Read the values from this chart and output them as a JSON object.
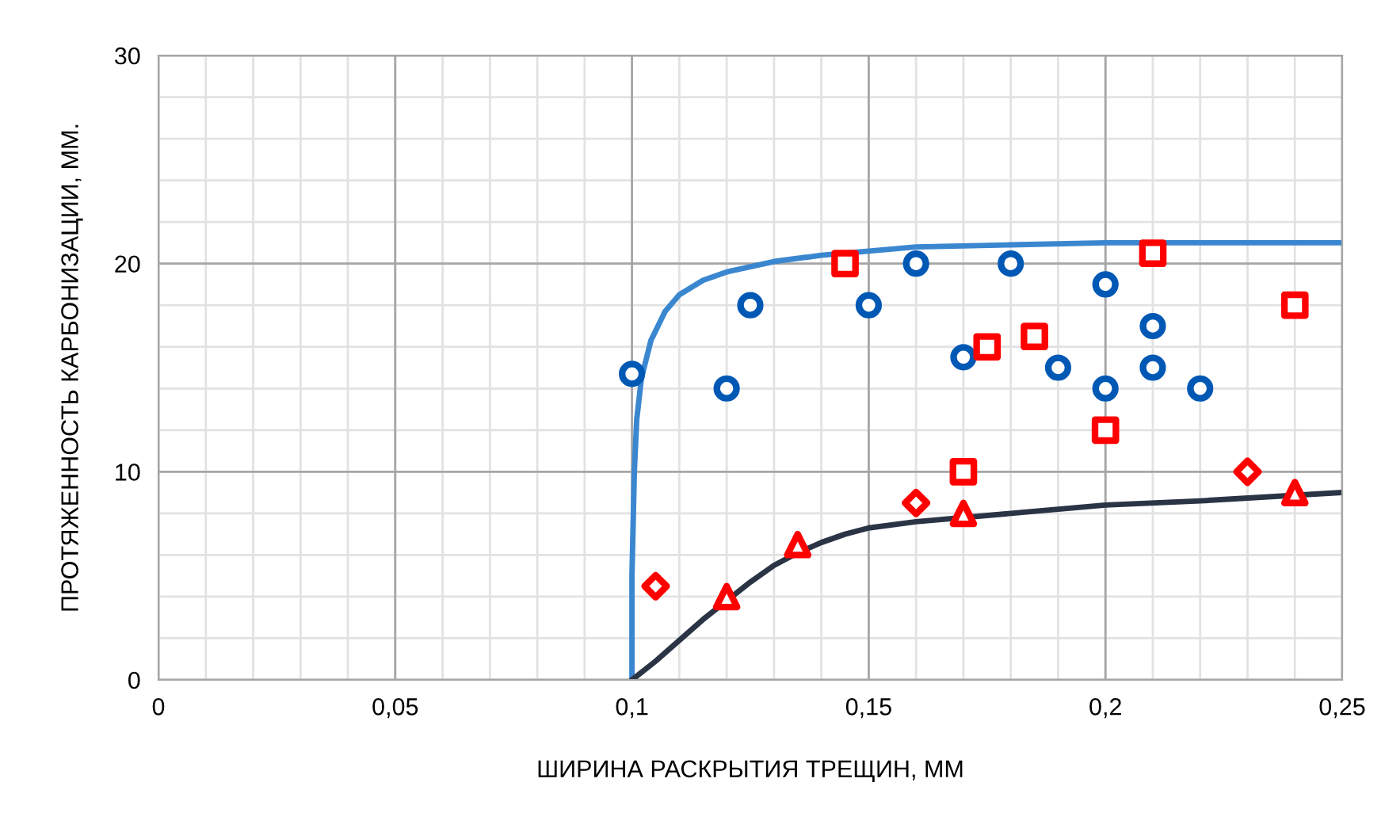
{
  "chart_data": {
    "type": "scatter",
    "xlabel": "ШИРИНА РАСКРЫТИЯ ТРЕЩИН, ММ",
    "ylabel": "ПРОТЯЖЕННОСТЬ КАРБОНИЗАЦИИ, ММ.",
    "xlim": [
      0,
      0.25
    ],
    "xticks": [
      {
        "value": 0,
        "label": "0"
      },
      {
        "value": 0.05,
        "label": "0,05"
      },
      {
        "value": 0.1,
        "label": "0,1"
      },
      {
        "value": 0.15,
        "label": "0,15"
      },
      {
        "value": 0.2,
        "label": "0,2"
      },
      {
        "value": 0.25,
        "label": "0,25"
      }
    ],
    "ylim": [
      0,
      30
    ],
    "yticks": [
      0,
      10,
      20,
      30
    ],
    "grid": true,
    "legend": false,
    "series": [
      {
        "type": "line",
        "color": "#3a87d0",
        "marker": "none",
        "line_style": "solid",
        "x": [
          0.1,
          0.1,
          0.1005,
          0.101,
          0.102,
          0.104,
          0.107,
          0.11,
          0.115,
          0.12,
          0.13,
          0.14,
          0.15,
          0.16,
          0.18,
          0.2,
          0.22,
          0.25
        ],
        "values": [
          0,
          5,
          10,
          12.5,
          14.5,
          16.3,
          17.7,
          18.5,
          19.2,
          19.6,
          20.1,
          20.4,
          20.6,
          20.8,
          20.9,
          21,
          21,
          21
        ]
      },
      {
        "type": "line",
        "color": "#2b3445",
        "marker": "none",
        "line_style": "solid",
        "x": [
          0.1,
          0.105,
          0.11,
          0.115,
          0.12,
          0.125,
          0.13,
          0.135,
          0.14,
          0.145,
          0.15,
          0.16,
          0.18,
          0.2,
          0.22,
          0.25
        ],
        "values": [
          0,
          0.9,
          1.9,
          2.9,
          3.8,
          4.7,
          5.5,
          6.1,
          6.6,
          7,
          7.3,
          7.6,
          8,
          8.4,
          8.6,
          9
        ]
      },
      {
        "color": "#0058b5",
        "marker": "circle",
        "x": [
          0.1,
          0.12,
          0.125,
          0.15,
          0.16,
          0.17,
          0.18,
          0.19,
          0.2,
          0.2,
          0.21,
          0.21,
          0.22
        ],
        "values": [
          14.7,
          14,
          18,
          18,
          20,
          15.5,
          20,
          15,
          19,
          14,
          17,
          15,
          14
        ]
      },
      {
        "color": "#ff0000",
        "marker": "square",
        "x": [
          0.145,
          0.17,
          0.175,
          0.185,
          0.2,
          0.21,
          0.24
        ],
        "values": [
          20,
          10,
          16,
          16.5,
          12,
          20.5,
          18
        ]
      },
      {
        "color": "#ff0000",
        "marker": "diamond",
        "x": [
          0.105,
          0.16,
          0.23
        ],
        "values": [
          4.5,
          8.5,
          10
        ]
      },
      {
        "color": "#ff0000",
        "marker": "triangle",
        "x": [
          0.12,
          0.135,
          0.17,
          0.24
        ],
        "values": [
          4,
          6.5,
          8,
          9
        ]
      }
    ]
  }
}
